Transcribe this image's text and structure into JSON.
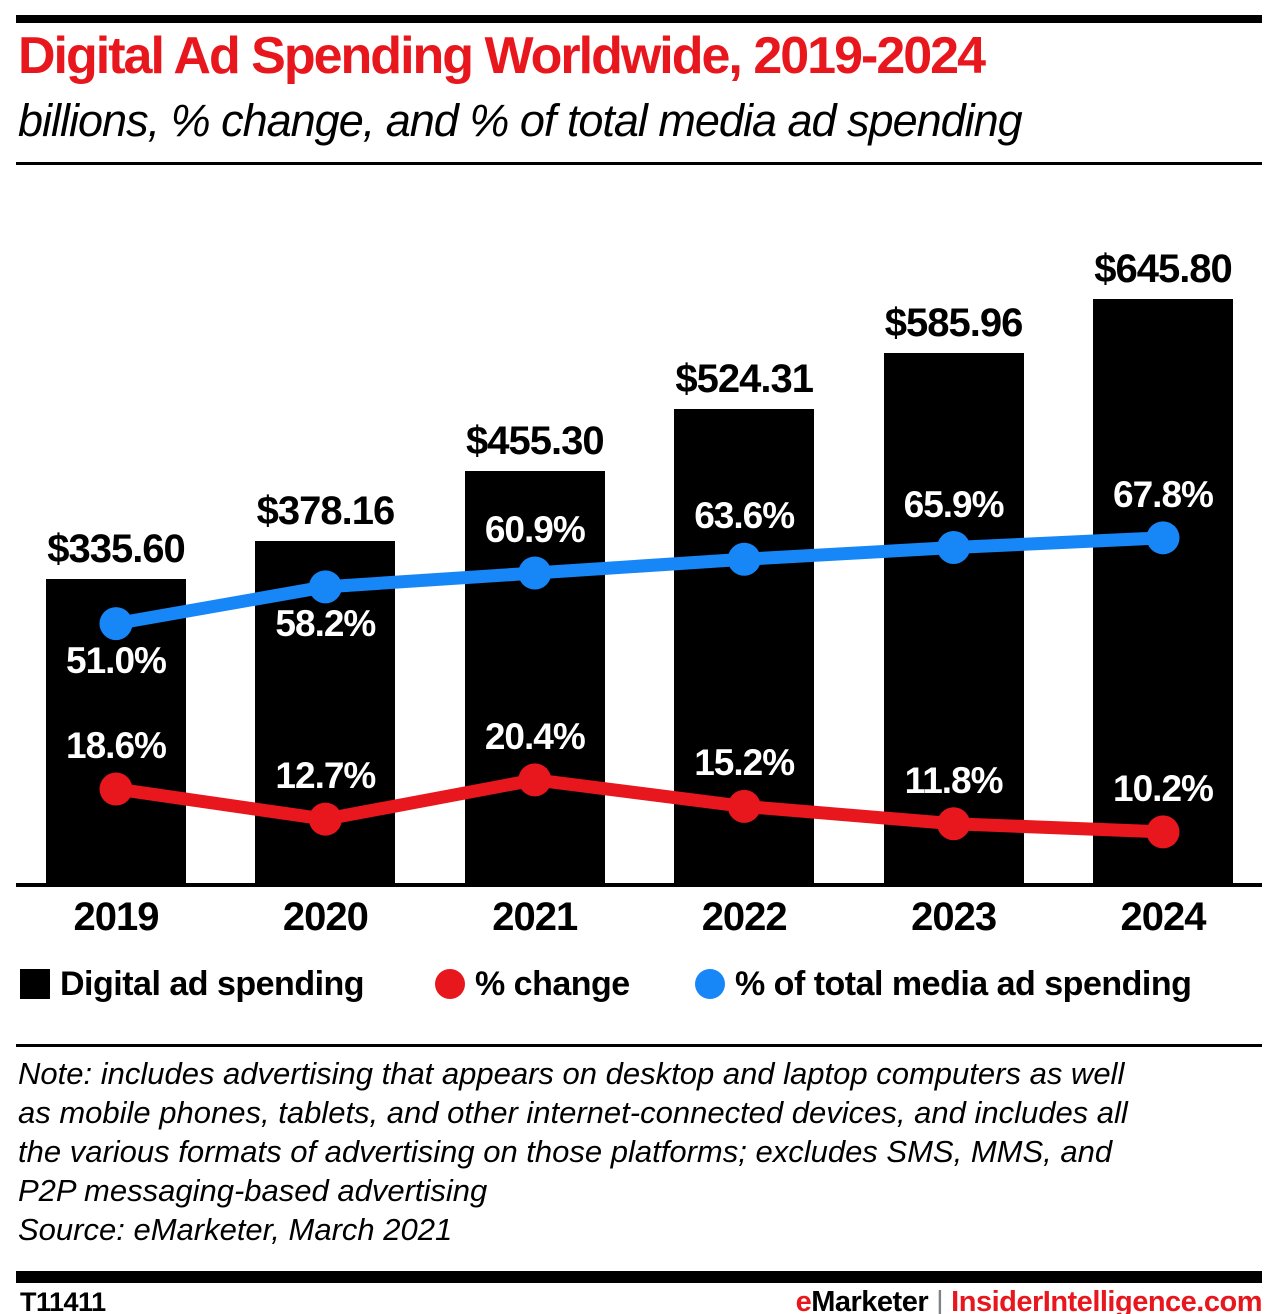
{
  "header": {
    "title": "Digital Ad Spending Worldwide, 2019-2024",
    "subtitle": "billions, % change, and % of total media ad spending"
  },
  "colors": {
    "red": "#e8161d",
    "blue": "#1787f8",
    "black": "#000000",
    "separator_gray": "#7d828a"
  },
  "chart_data": {
    "type": "bar",
    "categories": [
      "2019",
      "2020",
      "2021",
      "2022",
      "2023",
      "2024"
    ],
    "series": [
      {
        "name": "Digital ad spending",
        "type": "bar",
        "unit": "US$ billions",
        "values": [
          335.6,
          378.16,
          455.3,
          524.31,
          585.96,
          645.8
        ],
        "labels": [
          "$335.60",
          "$378.16",
          "$455.30",
          "$524.31",
          "$585.96",
          "$645.80"
        ],
        "color": "#000000"
      },
      {
        "name": "% change",
        "type": "line",
        "values": [
          18.6,
          12.7,
          20.4,
          15.2,
          11.8,
          10.2
        ],
        "labels": [
          "18.6%",
          "12.7%",
          "20.4%",
          "15.2%",
          "11.8%",
          "10.2%"
        ],
        "label_side": [
          "above",
          "above",
          "above",
          "above",
          "above",
          "above"
        ],
        "color": "#e8161d"
      },
      {
        "name": "% of total media ad spending",
        "type": "line",
        "values": [
          51.0,
          58.2,
          60.9,
          63.6,
          65.9,
          67.8
        ],
        "labels": [
          "51.0%",
          "58.2%",
          "60.9%",
          "63.6%",
          "65.9%",
          "67.8%"
        ],
        "label_side": [
          "below",
          "below",
          "above",
          "above",
          "above",
          "above"
        ],
        "color": "#1787f8"
      }
    ],
    "legend_position": "bottom",
    "grid": false,
    "value_axis_visible": false
  },
  "note": {
    "lines": [
      "Note: includes advertising that appears on desktop and laptop computers as well",
      "as mobile phones, tablets, and other internet-connected devices, and includes all",
      "the various formats of advertising on those platforms; excludes SMS, MMS, and",
      "P2P messaging-based advertising"
    ],
    "source": "Source: eMarketer, March 2021"
  },
  "footer": {
    "chart_id": "T11411",
    "brand_e": "e",
    "brand_rest": "Marketer",
    "separator": "|",
    "site": "InsiderIntelligence.com"
  }
}
